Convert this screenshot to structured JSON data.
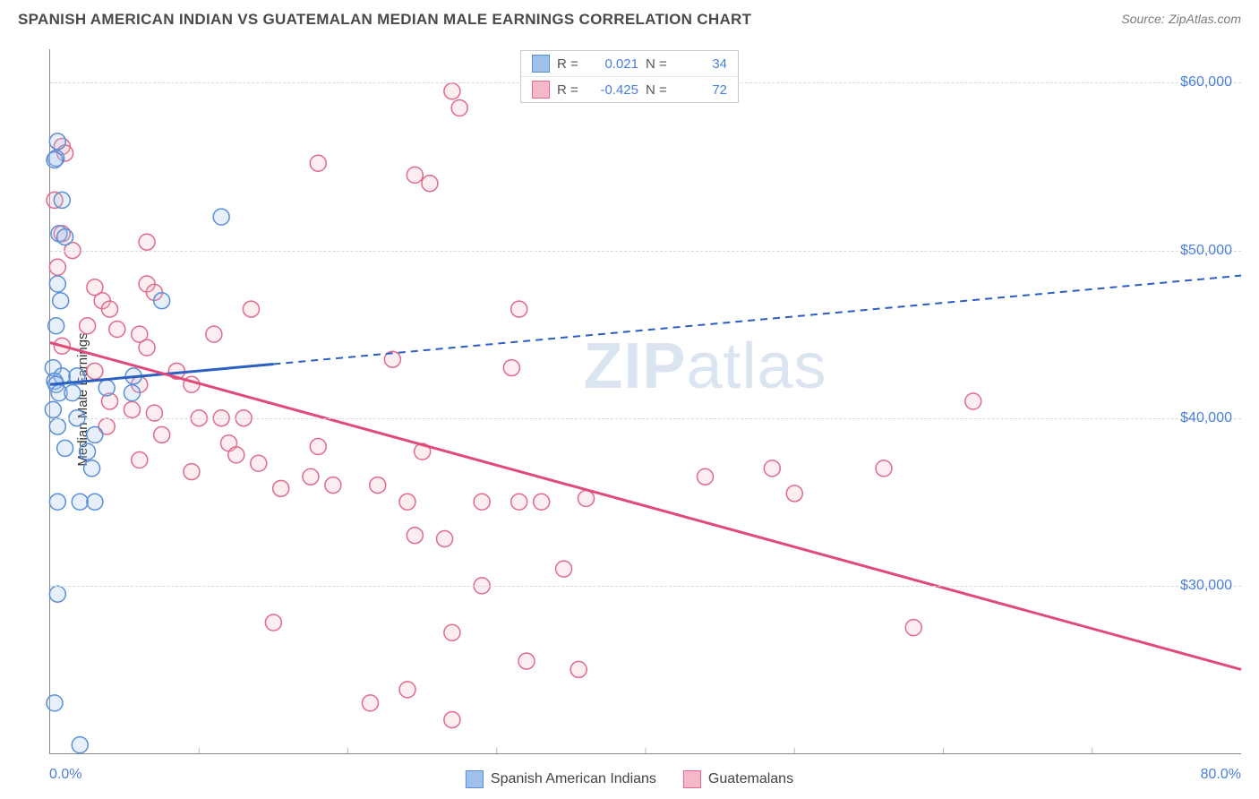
{
  "title": "SPANISH AMERICAN INDIAN VS GUATEMALAN MEDIAN MALE EARNINGS CORRELATION CHART",
  "source_label": "Source:",
  "source_value": "ZipAtlas.com",
  "ylabel": "Median Male Earnings",
  "watermark_bold": "ZIP",
  "watermark_light": "atlas",
  "chart": {
    "type": "scatter",
    "xlim": [
      0,
      80
    ],
    "ylim": [
      20000,
      62000
    ],
    "x_ticks": [
      0,
      80
    ],
    "x_tick_labels": [
      "0.0%",
      "80.0%"
    ],
    "x_minor_ticks": [
      10,
      20,
      30,
      40,
      50,
      60,
      70
    ],
    "y_ticks": [
      30000,
      40000,
      50000,
      60000
    ],
    "y_tick_labels": [
      "$30,000",
      "$40,000",
      "$50,000",
      "$60,000"
    ],
    "grid_color": "#d8d8d8",
    "axis_color": "#888888",
    "background_color": "#ffffff",
    "marker_radius": 9,
    "series": [
      {
        "name": "Spanish American Indians",
        "color_fill": "#9fc0eb",
        "color_stroke": "#5a8fd6",
        "R_label": "R =",
        "R_value": "0.021",
        "N_label": "N =",
        "N_value": "34",
        "regression": {
          "x1": 0,
          "y1": 42000,
          "x2": 80,
          "y2": 48500,
          "solid_until_x": 15,
          "color": "#2b5fc2",
          "width": 3
        },
        "points": [
          [
            0.5,
            56500
          ],
          [
            0.4,
            55500
          ],
          [
            0.3,
            55400
          ],
          [
            0.8,
            53000
          ],
          [
            0.6,
            51000
          ],
          [
            1.0,
            50800
          ],
          [
            11.5,
            52000
          ],
          [
            0.5,
            48000
          ],
          [
            0.7,
            47000
          ],
          [
            0.4,
            45500
          ],
          [
            7.5,
            47000
          ],
          [
            0.2,
            43000
          ],
          [
            0.8,
            42500
          ],
          [
            1.8,
            42500
          ],
          [
            5.6,
            42500
          ],
          [
            0.3,
            42200
          ],
          [
            0.4,
            42000
          ],
          [
            0.6,
            41500
          ],
          [
            1.5,
            41500
          ],
          [
            3.8,
            41800
          ],
          [
            5.5,
            41500
          ],
          [
            0.2,
            40500
          ],
          [
            1.8,
            40000
          ],
          [
            0.5,
            39500
          ],
          [
            3.0,
            39000
          ],
          [
            1.0,
            38200
          ],
          [
            2.5,
            38000
          ],
          [
            2.8,
            37000
          ],
          [
            0.5,
            35000
          ],
          [
            2.0,
            35000
          ],
          [
            3.0,
            35000
          ],
          [
            0.5,
            29500
          ],
          [
            0.3,
            23000
          ],
          [
            2.0,
            20500
          ]
        ]
      },
      {
        "name": "Guatemalans",
        "color_fill": "#f4b8c8",
        "color_stroke": "#e06a8c",
        "R_label": "R =",
        "R_value": "-0.425",
        "N_label": "N =",
        "N_value": "72",
        "regression": {
          "x1": 0,
          "y1": 44500,
          "x2": 80,
          "y2": 25000,
          "solid_until_x": 80,
          "color": "#e04a78",
          "width": 3
        },
        "points": [
          [
            27.0,
            59500
          ],
          [
            27.5,
            58500
          ],
          [
            0.8,
            56200
          ],
          [
            1.0,
            55800
          ],
          [
            18.0,
            55200
          ],
          [
            24.5,
            54500
          ],
          [
            25.5,
            54000
          ],
          [
            0.3,
            53000
          ],
          [
            0.8,
            51000
          ],
          [
            6.5,
            50500
          ],
          [
            1.5,
            50000
          ],
          [
            0.5,
            49000
          ],
          [
            6.5,
            48000
          ],
          [
            3.0,
            47800
          ],
          [
            7.0,
            47500
          ],
          [
            3.5,
            47000
          ],
          [
            4.0,
            46500
          ],
          [
            13.5,
            46500
          ],
          [
            31.5,
            46500
          ],
          [
            2.5,
            45500
          ],
          [
            4.5,
            45300
          ],
          [
            6.0,
            45000
          ],
          [
            11.0,
            45000
          ],
          [
            0.8,
            44300
          ],
          [
            6.5,
            44200
          ],
          [
            23.0,
            43500
          ],
          [
            31.0,
            43000
          ],
          [
            3.0,
            42800
          ],
          [
            8.5,
            42800
          ],
          [
            6.0,
            42000
          ],
          [
            9.5,
            42000
          ],
          [
            62.0,
            41000
          ],
          [
            4.0,
            41000
          ],
          [
            5.5,
            40500
          ],
          [
            7.0,
            40300
          ],
          [
            10.0,
            40000
          ],
          [
            11.5,
            40000
          ],
          [
            13.0,
            40000
          ],
          [
            3.8,
            39500
          ],
          [
            7.5,
            39000
          ],
          [
            12.0,
            38500
          ],
          [
            18.0,
            38300
          ],
          [
            25.0,
            38000
          ],
          [
            12.5,
            37800
          ],
          [
            6.0,
            37500
          ],
          [
            14.0,
            37300
          ],
          [
            48.5,
            37000
          ],
          [
            56.0,
            37000
          ],
          [
            9.5,
            36800
          ],
          [
            17.5,
            36500
          ],
          [
            19.0,
            36000
          ],
          [
            22.0,
            36000
          ],
          [
            15.5,
            35800
          ],
          [
            24.0,
            35000
          ],
          [
            29.0,
            35000
          ],
          [
            31.5,
            35000
          ],
          [
            33.0,
            35000
          ],
          [
            36.0,
            35200
          ],
          [
            44.0,
            36500
          ],
          [
            50.0,
            35500
          ],
          [
            24.5,
            33000
          ],
          [
            26.5,
            32800
          ],
          [
            34.5,
            31000
          ],
          [
            29.0,
            30000
          ],
          [
            58.0,
            27500
          ],
          [
            15.0,
            27800
          ],
          [
            27.0,
            27200
          ],
          [
            32.0,
            25500
          ],
          [
            35.5,
            25000
          ],
          [
            21.5,
            23000
          ],
          [
            24.0,
            23800
          ],
          [
            27.0,
            22000
          ]
        ]
      }
    ]
  }
}
